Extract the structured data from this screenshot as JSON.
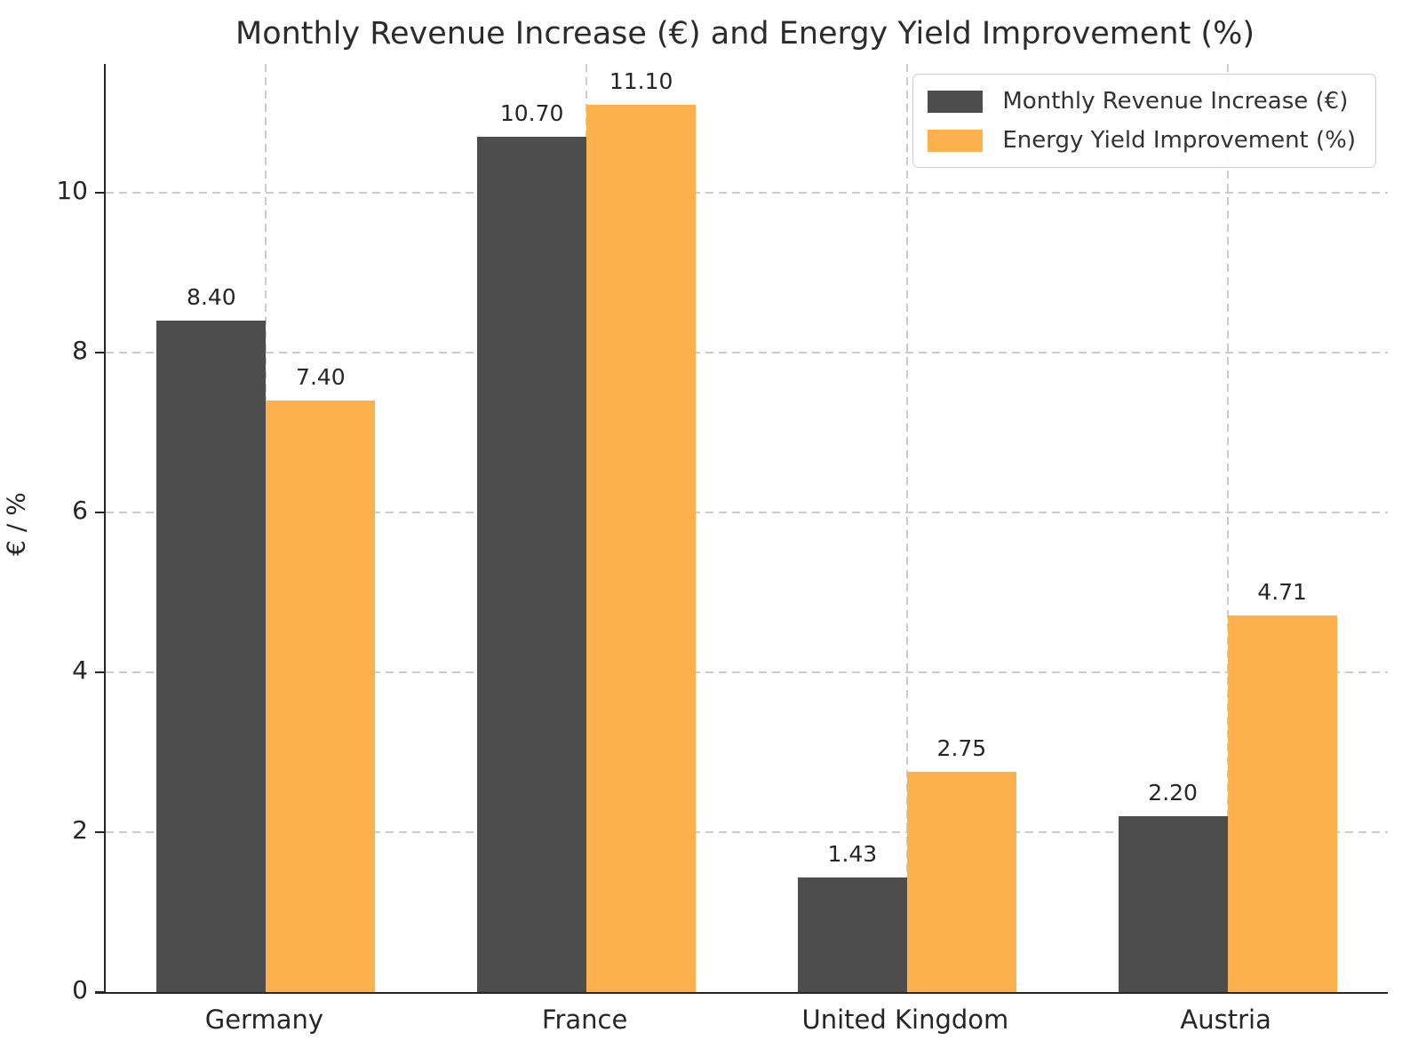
{
  "chart_data": {
    "type": "bar",
    "title": "Monthly Revenue Increase (€) and Energy Yield Improvement (%)",
    "ylabel": "€ / %",
    "xlabel": "",
    "categories": [
      "Germany",
      "France",
      "United Kingdom",
      "Austria"
    ],
    "series": [
      {
        "name": "Monthly Revenue Increase (€)",
        "color": "#4d4d4d",
        "values": [
          8.4,
          10.7,
          1.43,
          2.2
        ],
        "bar_labels": [
          "8.40",
          "10.70",
          "1.43",
          "2.20"
        ]
      },
      {
        "name": "Energy Yield Improvement (%)",
        "color": "#fcb14c",
        "values": [
          7.4,
          11.1,
          2.75,
          4.71
        ],
        "bar_labels": [
          "7.40",
          "11.10",
          "2.75",
          "4.71"
        ]
      }
    ],
    "y_ticks": [
      0,
      2,
      4,
      6,
      8,
      10
    ],
    "ylim": [
      0,
      11.61
    ],
    "grid": true,
    "grid_style": "dashed",
    "legend_position": "upper right",
    "background_color": "#ffffff",
    "text_color": "#262626"
  }
}
